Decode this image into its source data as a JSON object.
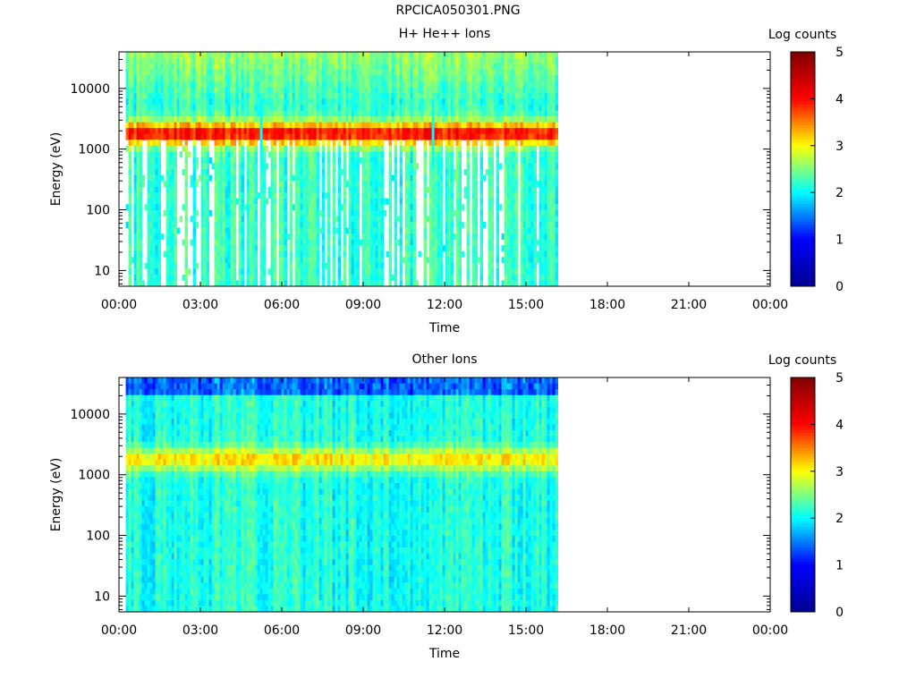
{
  "figure_title": "RPCICA050301.PNG",
  "chart_data": [
    {
      "type": "heatmap",
      "panel": "h-he-ions",
      "title": "H+ He++ Ions",
      "xlabel": "Time",
      "ylabel": "Energy (eV)",
      "x_ticks": [
        "00:00",
        "03:00",
        "06:00",
        "09:00",
        "12:00",
        "15:00",
        "18:00",
        "21:00",
        "00:00"
      ],
      "x_range_hours": [
        0,
        24
      ],
      "data_end_hours": 16.1,
      "data_start_hours": 0.25,
      "y_scale": "log",
      "y_ticks": [
        "10",
        "100",
        "1000",
        "10000"
      ],
      "y_range": [
        5.5,
        40000
      ],
      "colorbar_label": "Log counts",
      "colorbar_ticks": [
        "0",
        "1",
        "2",
        "3",
        "4",
        "5"
      ],
      "colorbar_range": [
        0,
        5
      ],
      "colormap": [
        "#00008f",
        "#0000ff",
        "#00ffff",
        "#ffff00",
        "#ff0000",
        "#800000"
      ],
      "peak_band_energy_eV": 1800,
      "peak_log_counts": 4.0,
      "background_log_counts": 2.2,
      "data_gaps_hours": [
        [
          5.1,
          5.25
        ],
        [
          11.45,
          11.6
        ]
      ]
    },
    {
      "type": "heatmap",
      "panel": "other-ions",
      "title": "Other Ions",
      "xlabel": "Time",
      "ylabel": "Energy (eV)",
      "x_ticks": [
        "00:00",
        "03:00",
        "06:00",
        "09:00",
        "12:00",
        "15:00",
        "18:00",
        "21:00",
        "00:00"
      ],
      "x_range_hours": [
        0,
        24
      ],
      "data_end_hours": 16.1,
      "data_start_hours": 0.25,
      "y_scale": "log",
      "y_ticks": [
        "10",
        "100",
        "1000",
        "10000"
      ],
      "y_range": [
        5.5,
        40000
      ],
      "colorbar_label": "Log counts",
      "colorbar_ticks": [
        "0",
        "1",
        "2",
        "3",
        "4",
        "5"
      ],
      "colorbar_range": [
        0,
        5
      ],
      "colormap": [
        "#00008f",
        "#0000ff",
        "#00ffff",
        "#ffff00",
        "#ff0000",
        "#800000"
      ],
      "peak_band_energy_eV": 1800,
      "peak_log_counts": 3.1,
      "background_log_counts": 2.1,
      "data_gaps_hours": []
    }
  ]
}
